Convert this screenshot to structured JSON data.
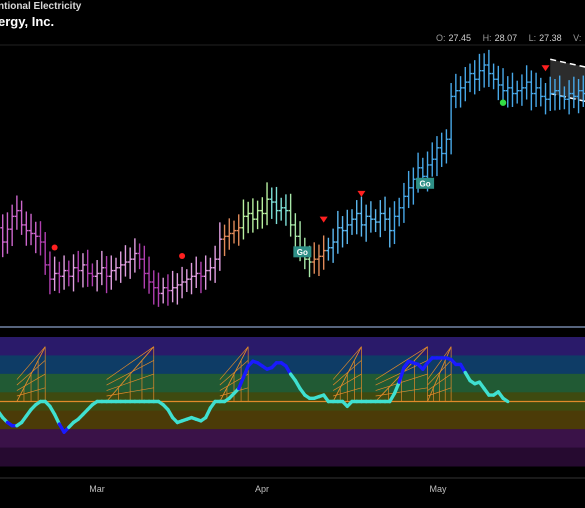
{
  "header": {
    "subtitle": "ntional Electricity",
    "title": "ergy, Inc."
  },
  "ohlc": {
    "open_label": "O:",
    "open": "27.45",
    "high_label": "H:",
    "high": "28.07",
    "low_label": "L:",
    "low": "27.38",
    "v_label": "V:"
  },
  "colors": {
    "background": "#000000",
    "go_teal": "#2e8f86",
    "signal_red": "#ff2020",
    "signal_green": "#33dd44",
    "oscillator_strong": "#1a1aff",
    "oscillator_weak": "#3fe0d0",
    "zero_line": "#e08a2a",
    "cone": "#e08a2a"
  },
  "chart_data": [
    {
      "type": "ohlc",
      "title": "",
      "x_axis": {
        "ticks": [
          "Mar",
          "Apr",
          "May"
        ]
      },
      "x": [
        0,
        1,
        2,
        3,
        4,
        5,
        6,
        7,
        8,
        9,
        10,
        11,
        12,
        13,
        14,
        15,
        16,
        17,
        18,
        19,
        20,
        21,
        22,
        23,
        24,
        25,
        26,
        27,
        28,
        29,
        30,
        31,
        32,
        33,
        34,
        35,
        36,
        37,
        38,
        39,
        40,
        41,
        42,
        43,
        44,
        45,
        46,
        47,
        48,
        49,
        50,
        51,
        52,
        53,
        54,
        55,
        56,
        57,
        58,
        59,
        60,
        61,
        62,
        63,
        64,
        65,
        66,
        67,
        68,
        69,
        70,
        71,
        72,
        73,
        74,
        75,
        76,
        77,
        78,
        79,
        80,
        81,
        82,
        83,
        84,
        85,
        86,
        87,
        88,
        89,
        90,
        91,
        92,
        93,
        94,
        95,
        96,
        97,
        98,
        99,
        100,
        101,
        102,
        103,
        104,
        105,
        106,
        107,
        108,
        109,
        110,
        111,
        112,
        113,
        114,
        115,
        116,
        117,
        118,
        119,
        120,
        121,
        122,
        123,
        124,
        125
      ],
      "close": [
        22.95,
        22.45,
        22.9,
        23.35,
        23.55,
        23.05,
        22.85,
        22.75,
        22.65,
        22.45,
        21.65,
        21.15,
        21.35,
        21.25,
        21.45,
        21.25,
        21.55,
        21.45,
        21.65,
        21.35,
        21.25,
        21.35,
        21.55,
        21.25,
        21.45,
        21.55,
        21.65,
        21.75,
        21.85,
        22.05,
        21.85,
        21.35,
        21.05,
        20.85,
        20.65,
        20.85,
        20.75,
        20.85,
        20.95,
        21.05,
        21.15,
        21.25,
        21.35,
        21.25,
        21.45,
        21.55,
        21.85,
        22.55,
        22.65,
        22.75,
        22.85,
        22.95,
        23.35,
        23.45,
        23.25,
        23.55,
        23.45,
        23.95,
        23.85,
        23.55,
        23.65,
        23.55,
        23.05,
        22.65,
        22.25,
        21.85,
        21.75,
        21.85,
        21.95,
        22.15,
        22.25,
        22.45,
        22.95,
        22.85,
        23.05,
        23.25,
        23.45,
        23.05,
        23.35,
        23.25,
        23.15,
        23.45,
        23.25,
        22.85,
        23.35,
        23.65,
        24.05,
        24.35,
        24.65,
        25.05,
        24.75,
        25.15,
        25.35,
        25.75,
        25.55,
        26.05,
        27.55,
        27.75,
        27.85,
        28.05,
        28.35,
        28.15,
        28.45,
        28.65,
        28.35,
        28.15,
        27.95,
        27.75,
        27.85,
        27.65,
        27.75,
        27.85,
        28.05,
        27.65,
        27.85,
        27.55,
        27.45,
        27.65,
        27.75,
        27.55,
        27.45,
        27.65,
        27.55,
        27.75,
        27.65,
        27.45
      ],
      "ylim": [
        20.0,
        29.0
      ],
      "go_label": "Go",
      "go_labels_at": [
        63,
        89
      ],
      "signals_red_at": [
        12,
        39,
        69,
        77,
        116,
        130
      ],
      "signal_green_at": [
        107
      ],
      "channel": {
        "from_x": 117,
        "to_x": 125,
        "top": [
          28.85,
          28.25
        ],
        "bottom": [
          27.65,
          27.05
        ]
      }
    },
    {
      "type": "line",
      "title": "",
      "ylim": [
        -4,
        4
      ],
      "zero_line": 0,
      "band_colors": [
        "#2a1a6a",
        "#0e3c66",
        "#215a34",
        "#3e4a10",
        "#4b3b08",
        "#3a1248",
        "#260a30"
      ],
      "values": [
        -0.6,
        -1.0,
        -1.3,
        -1.5,
        -1.5,
        -1.3,
        -0.9,
        -0.5,
        -0.2,
        0.0,
        0.0,
        -0.3,
        -0.8,
        -1.4,
        -1.9,
        -1.6,
        -1.3,
        -1.1,
        -0.8,
        -0.5,
        -0.2,
        0.0,
        0.0,
        0.0,
        0.0,
        0.0,
        0.0,
        0.0,
        0.0,
        0.0,
        0.0,
        0.0,
        0.0,
        0.0,
        0.0,
        -0.2,
        -0.5,
        -1.0,
        -1.3,
        -1.2,
        -1.1,
        -1.0,
        -1.1,
        -1.2,
        -1.0,
        -0.4,
        0.0,
        0.0,
        0.0,
        0.2,
        0.5,
        0.8,
        1.5,
        2.2,
        2.5,
        2.4,
        2.2,
        2.0,
        2.1,
        2.4,
        2.4,
        2.2,
        1.7,
        1.3,
        0.8,
        0.4,
        0.2,
        0.2,
        0.3,
        0.4,
        0.0,
        0.0,
        0.0,
        0.0,
        -0.3,
        0.0,
        0.0,
        0.0,
        0.0,
        0.0,
        0.0,
        0.0,
        0.0,
        0.0,
        0.5,
        1.2,
        2.1,
        2.5,
        2.4,
        2.3,
        2.0,
        2.4,
        2.7,
        2.7,
        2.7,
        2.7,
        2.6,
        2.3,
        2.3,
        1.8,
        1.3,
        1.1,
        1.2,
        0.8,
        0.4,
        0.4,
        0.6,
        0.2,
        0.0
      ]
    }
  ]
}
